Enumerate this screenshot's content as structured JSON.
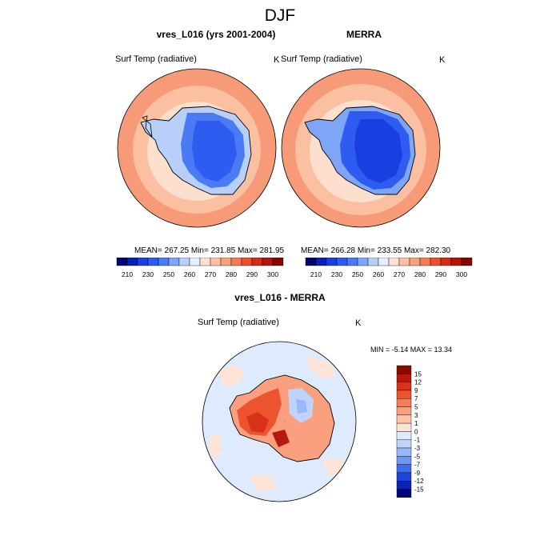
{
  "title": "DJF",
  "panels": [
    {
      "title": "vres_L016 (yrs 2001-2004)",
      "variable": "Surf Temp (radiative)",
      "units": "K",
      "stats": "MEAN= 267.25  Min= 231.85  Max= 281.95"
    },
    {
      "title": "MERRA",
      "variable": "Surf Temp (radiative)",
      "units": "K",
      "stats": "MEAN= 266.28  Min= 233.55  Max= 282.30"
    }
  ],
  "diff_panel": {
    "title": "vres_L016 - MERRA",
    "variable": "Surf Temp (radiative)",
    "units": "K",
    "stats": "MIN =  -5.14 MAX =  13.34"
  },
  "colorbar_horizontal": {
    "labels": [
      "210",
      "230",
      "250",
      "260",
      "270",
      "280",
      "290",
      "300"
    ],
    "colors": [
      "#00006e",
      "#0a1fb4",
      "#1a3fe0",
      "#2e5cf0",
      "#4a7bf5",
      "#7fa5f8",
      "#b7cff9",
      "#e6efff",
      "#fde0d2",
      "#fcc0a3",
      "#f9a07c",
      "#f57a55",
      "#ec4f2e",
      "#d62a16",
      "#b3140b",
      "#830700"
    ]
  },
  "colorbar_vertical": {
    "labels": [
      "15",
      "12",
      "9",
      "7",
      "5",
      "3",
      "1",
      "0",
      "-1",
      "-3",
      "-5",
      "-7",
      "-9",
      "-12",
      "-15"
    ],
    "colors": [
      "#8b0a00",
      "#b51a0c",
      "#d8331a",
      "#ee5330",
      "#f77b55",
      "#fba07e",
      "#fdc3a8",
      "#fde4d6",
      "#deebff",
      "#bfd3fb",
      "#9ab8f8",
      "#6d96f5",
      "#3e6cee",
      "#1c43dc",
      "#0a24b0",
      "#00067a"
    ]
  }
}
